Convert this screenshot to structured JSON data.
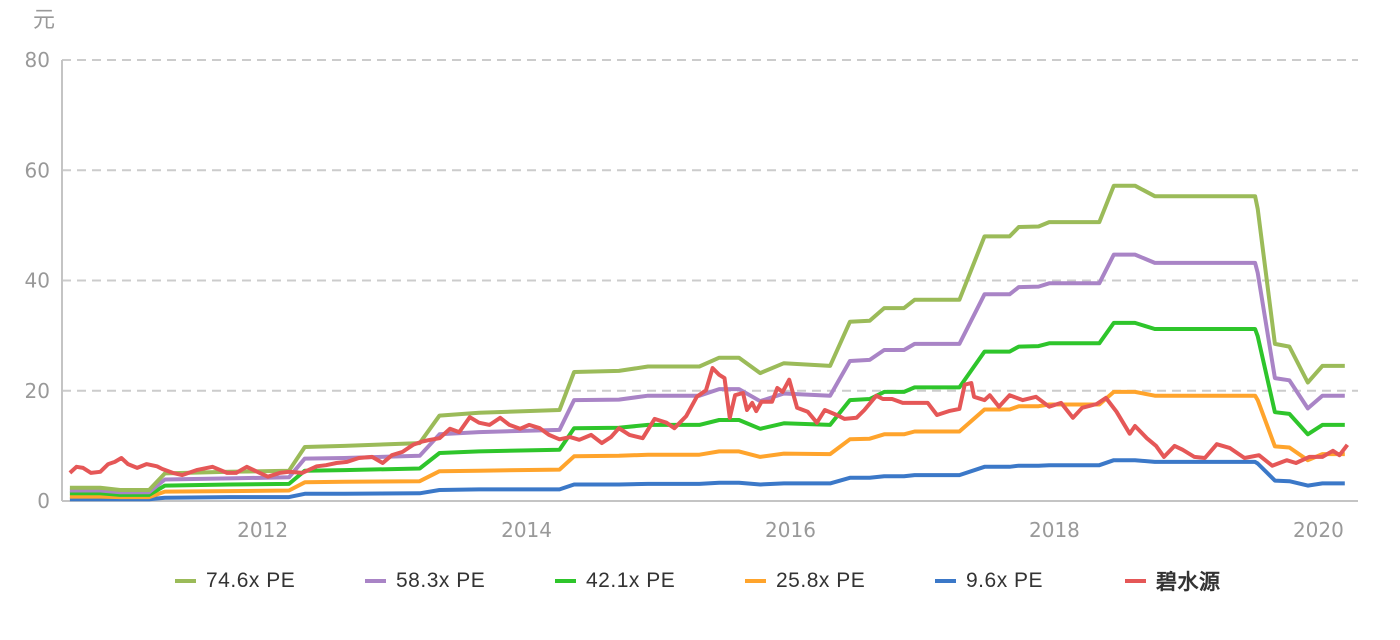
{
  "chart_data": {
    "type": "line",
    "title": "",
    "ylabel": "元",
    "xlabel": "",
    "ylim": [
      0,
      80
    ],
    "xlim": [
      2010.48,
      2020.3
    ],
    "yticks": [
      "0",
      "20",
      "40",
      "60",
      "80"
    ],
    "xticks": [
      "2012",
      "2014",
      "2016",
      "2018",
      "2020"
    ],
    "grid": "horizontal dashed",
    "legend": "bottom",
    "band_x": [
      2010.54,
      2010.77,
      2010.92,
      2011.14,
      2011.26,
      2011.75,
      2012.2,
      2012.32,
      2012.62,
      2013.19,
      2013.34,
      2013.64,
      2014.25,
      2014.36,
      2014.7,
      2014.92,
      2015.31,
      2015.46,
      2015.61,
      2015.77,
      2015.95,
      2016.3,
      2016.45,
      2016.6,
      2016.71,
      2016.86,
      2016.94,
      2017.28,
      2017.47,
      2017.66,
      2017.73,
      2017.88,
      2017.96,
      2018.34,
      2018.45,
      2018.61,
      2018.76,
      2019.52,
      2019.54,
      2019.67,
      2019.78,
      2019.92,
      2020.03,
      2020.2
    ],
    "series": [
      {
        "name": "74.6x PE",
        "color": "#9bbb59",
        "values": [
          2.4,
          2.4,
          2.0,
          2.0,
          5.0,
          5.3,
          5.5,
          9.8,
          10.0,
          10.5,
          15.5,
          16.0,
          16.5,
          23.4,
          23.6,
          24.4,
          24.4,
          26.0,
          26.0,
          23.2,
          25.0,
          24.5,
          32.5,
          32.7,
          35.0,
          35.0,
          36.5,
          36.5,
          48.0,
          48.0,
          49.7,
          49.8,
          50.6,
          50.6,
          57.2,
          57.2,
          55.3,
          55.3,
          53.0,
          28.5,
          28.0,
          21.5,
          24.5,
          24.5
        ]
      },
      {
        "name": "58.3x PE",
        "color": "#a984c6",
        "values": [
          1.9,
          1.9,
          1.6,
          1.6,
          3.9,
          4.1,
          4.3,
          7.7,
          7.8,
          8.2,
          12.1,
          12.5,
          12.9,
          18.3,
          18.4,
          19.1,
          19.1,
          20.3,
          20.3,
          18.1,
          19.5,
          19.1,
          25.4,
          25.6,
          27.4,
          27.4,
          28.5,
          28.5,
          37.5,
          37.5,
          38.8,
          38.9,
          39.5,
          39.5,
          44.7,
          44.7,
          43.2,
          43.2,
          41.4,
          22.3,
          21.9,
          16.8,
          19.1,
          19.1
        ]
      },
      {
        "name": "42.1x PE",
        "color": "#2ec52b",
        "values": [
          1.4,
          1.4,
          1.1,
          1.1,
          2.8,
          3.0,
          3.1,
          5.5,
          5.6,
          5.9,
          8.7,
          9.0,
          9.3,
          13.2,
          13.3,
          13.8,
          13.8,
          14.7,
          14.7,
          13.1,
          14.1,
          13.8,
          18.3,
          18.5,
          19.8,
          19.8,
          20.6,
          20.6,
          27.1,
          27.1,
          28.0,
          28.1,
          28.6,
          28.6,
          32.3,
          32.3,
          31.2,
          31.2,
          29.9,
          16.1,
          15.8,
          12.1,
          13.8,
          13.8
        ]
      },
      {
        "name": "25.8x PE",
        "color": "#ffa42c",
        "values": [
          0.8,
          0.8,
          0.7,
          0.7,
          1.7,
          1.8,
          1.9,
          3.4,
          3.5,
          3.6,
          5.4,
          5.5,
          5.7,
          8.1,
          8.2,
          8.4,
          8.4,
          9.0,
          9.0,
          8.0,
          8.6,
          8.5,
          11.2,
          11.3,
          12.1,
          12.1,
          12.6,
          12.6,
          16.6,
          16.6,
          17.2,
          17.2,
          17.5,
          17.5,
          19.8,
          19.8,
          19.1,
          19.1,
          18.3,
          9.9,
          9.7,
          7.4,
          8.5,
          8.5
        ]
      },
      {
        "name": "9.6x PE",
        "color": "#3b78c8",
        "values": [
          0.3,
          0.3,
          0.3,
          0.3,
          0.6,
          0.7,
          0.7,
          1.3,
          1.3,
          1.4,
          2.0,
          2.1,
          2.1,
          3.0,
          3.0,
          3.1,
          3.1,
          3.3,
          3.3,
          3.0,
          3.2,
          3.2,
          4.2,
          4.2,
          4.5,
          4.5,
          4.7,
          4.7,
          6.2,
          6.2,
          6.4,
          6.4,
          6.5,
          6.5,
          7.4,
          7.4,
          7.1,
          7.1,
          6.8,
          3.7,
          3.6,
          2.8,
          3.2,
          3.2
        ]
      },
      {
        "name": "碧水源",
        "color": "#e55757",
        "x": [
          2010.54,
          2010.59,
          2010.64,
          2010.7,
          2010.77,
          2010.83,
          2010.88,
          2010.93,
          2010.98,
          2011.05,
          2011.12,
          2011.2,
          2011.24,
          2011.32,
          2011.39,
          2011.5,
          2011.62,
          2011.73,
          2011.8,
          2011.88,
          2011.95,
          2012.04,
          2012.13,
          2012.2,
          2012.3,
          2012.41,
          2012.48,
          2012.56,
          2012.64,
          2012.73,
          2012.83,
          2012.91,
          2012.98,
          2013.06,
          2013.14,
          2013.21,
          2013.27,
          2013.34,
          2013.42,
          2013.49,
          2013.57,
          2013.64,
          2013.72,
          2013.8,
          2013.87,
          2013.95,
          2014.02,
          2014.1,
          2014.17,
          2014.25,
          2014.33,
          2014.4,
          2014.49,
          2014.57,
          2014.64,
          2014.7,
          2014.78,
          2014.88,
          2014.97,
          2015.06,
          2015.12,
          2015.21,
          2015.29,
          2015.36,
          2015.41,
          2015.46,
          2015.5,
          2015.54,
          2015.58,
          2015.64,
          2015.67,
          2015.71,
          2015.74,
          2015.78,
          2015.86,
          2015.9,
          2015.94,
          2015.99,
          2016.05,
          2016.13,
          2016.2,
          2016.26,
          2016.35,
          2016.41,
          2016.5,
          2016.56,
          2016.65,
          2016.7,
          2016.77,
          2016.85,
          2016.95,
          2017.04,
          2017.11,
          2017.2,
          2017.28,
          2017.32,
          2017.37,
          2017.39,
          2017.47,
          2017.51,
          2017.58,
          2017.66,
          2017.76,
          2017.86,
          2017.96,
          2018.05,
          2018.14,
          2018.21,
          2018.32,
          2018.39,
          2018.47,
          2018.57,
          2018.61,
          2018.7,
          2018.77,
          2018.83,
          2018.91,
          2018.97,
          2019.06,
          2019.14,
          2019.23,
          2019.33,
          2019.44,
          2019.55,
          2019.65,
          2019.76,
          2019.83,
          2019.93,
          2020.03,
          2020.11,
          2020.16,
          2020.22
        ],
        "values": [
          5.1,
          6.2,
          6.0,
          5.1,
          5.3,
          6.7,
          7.1,
          7.8,
          6.7,
          6.0,
          6.7,
          6.3,
          5.8,
          5.1,
          4.7,
          5.6,
          6.2,
          5.1,
          5.1,
          6.2,
          5.4,
          4.4,
          5.1,
          5.3,
          5.1,
          6.3,
          6.5,
          6.9,
          7.1,
          7.8,
          8.0,
          6.9,
          8.3,
          8.9,
          10.2,
          10.8,
          11.1,
          11.4,
          13.1,
          12.5,
          15.2,
          14.2,
          13.8,
          15.1,
          13.8,
          13.1,
          13.8,
          13.2,
          12.0,
          11.2,
          11.6,
          11.1,
          12.0,
          10.5,
          11.6,
          13.2,
          12.0,
          11.4,
          14.9,
          14.2,
          13.2,
          15.4,
          18.9,
          20.1,
          24.1,
          22.9,
          22.3,
          15.1,
          19.2,
          19.6,
          16.5,
          17.8,
          16.3,
          18.0,
          18.0,
          20.5,
          19.8,
          22.0,
          16.9,
          16.2,
          14.2,
          16.5,
          15.6,
          14.9,
          15.1,
          16.5,
          19.1,
          18.5,
          18.5,
          17.8,
          17.8,
          17.8,
          15.6,
          16.3,
          16.7,
          21.1,
          21.4,
          18.9,
          18.3,
          19.2,
          17.1,
          19.2,
          18.3,
          18.9,
          17.1,
          17.8,
          15.1,
          16.9,
          17.6,
          18.7,
          16.2,
          12.2,
          13.6,
          11.4,
          10.0,
          8.0,
          10.0,
          9.3,
          8.0,
          7.8,
          10.3,
          9.6,
          7.8,
          8.3,
          6.4,
          7.4,
          6.9,
          8.0,
          8.0,
          9.1,
          8.3,
          10.2
        ]
      }
    ]
  }
}
